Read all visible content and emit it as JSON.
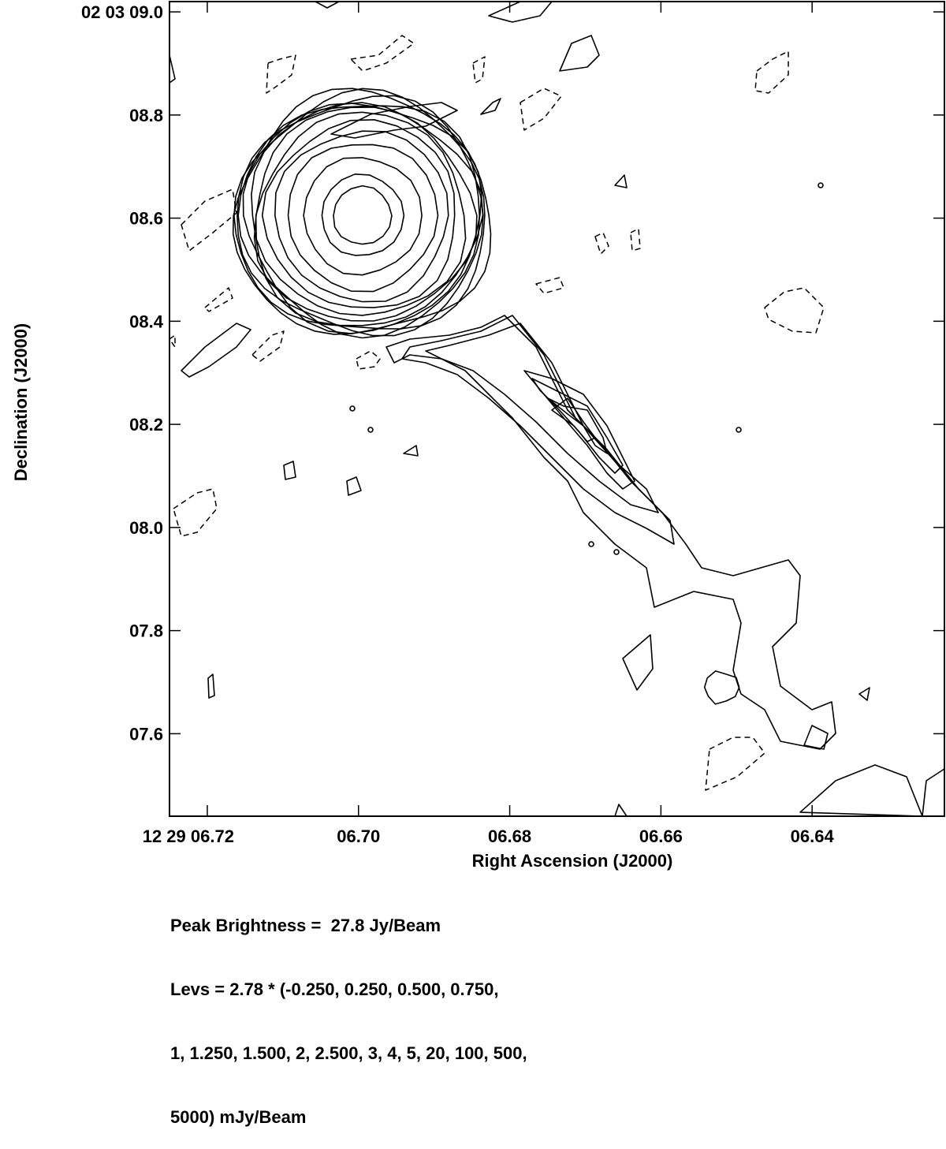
{
  "chart_data": {
    "type": "contour",
    "title": "",
    "xlabel": "Right Ascension (J2000)",
    "ylabel": "Declination (J2000)",
    "x_unit": "seconds of RA (12h29m)",
    "y_unit": "arcsec of Dec (+02d03m)",
    "xlim": [
      6.725,
      6.6225
    ],
    "ylim": [
      7.44,
      9.02
    ],
    "x_ticks": [
      {
        "value": 6.72,
        "label": "12 29 06.72"
      },
      {
        "value": 6.7,
        "label": "06.70"
      },
      {
        "value": 6.68,
        "label": "06.68"
      },
      {
        "value": 6.66,
        "label": "06.66"
      },
      {
        "value": 6.64,
        "label": "06.64"
      }
    ],
    "y_ticks": [
      {
        "value": 9.0,
        "label": "02 03 09.0"
      },
      {
        "value": 8.8,
        "label": "08.8"
      },
      {
        "value": 8.6,
        "label": "08.6"
      },
      {
        "value": 8.4,
        "label": "08.4"
      },
      {
        "value": 8.2,
        "label": "08.2"
      },
      {
        "value": 8.0,
        "label": "08.0"
      },
      {
        "value": 7.8,
        "label": "07.8"
      },
      {
        "value": 7.6,
        "label": "07.6"
      }
    ],
    "core": {
      "ra": 6.6995,
      "dec": 8.605
    },
    "jet_knots": [
      {
        "ra": 6.6695,
        "dec": 8.21
      },
      {
        "ra": 6.664,
        "dec": 8.11
      },
      {
        "ra": 6.652,
        "dec": 7.69
      }
    ],
    "peak_text": "Peak Brightness =  27.8 Jy/Beam",
    "levels_text": [
      "Levs = 2.78 * (-0.250, 0.250, 0.500, 0.750,",
      "1, 1.250, 1.500, 2, 2.500, 3, 4, 5, 20, 100, 500,",
      "5000) mJy/Beam"
    ]
  }
}
